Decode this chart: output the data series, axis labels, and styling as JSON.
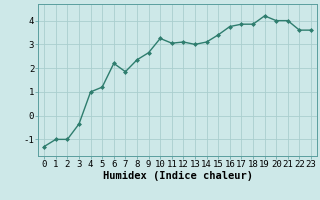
{
  "x": [
    0,
    1,
    2,
    3,
    4,
    5,
    6,
    7,
    8,
    9,
    10,
    11,
    12,
    13,
    14,
    15,
    16,
    17,
    18,
    19,
    20,
    21,
    22,
    23
  ],
  "y": [
    -1.3,
    -1.0,
    -1.0,
    -0.35,
    1.0,
    1.2,
    2.2,
    1.85,
    2.35,
    2.65,
    3.25,
    3.05,
    3.1,
    3.0,
    3.1,
    3.4,
    3.75,
    3.85,
    3.85,
    4.2,
    4.0,
    4.0,
    3.6,
    3.6
  ],
  "line_color": "#2e7d6e",
  "marker": "D",
  "marker_size": 2.0,
  "line_width": 1.0,
  "bg_color": "#cde8e8",
  "grid_color": "#aacece",
  "xlabel": "Humidex (Indice chaleur)",
  "xlabel_fontsize": 7.5,
  "tick_fontsize": 6.5,
  "xlim": [
    -0.5,
    23.5
  ],
  "ylim": [
    -1.7,
    4.7
  ],
  "yticks": [
    -1,
    0,
    1,
    2,
    3,
    4
  ]
}
